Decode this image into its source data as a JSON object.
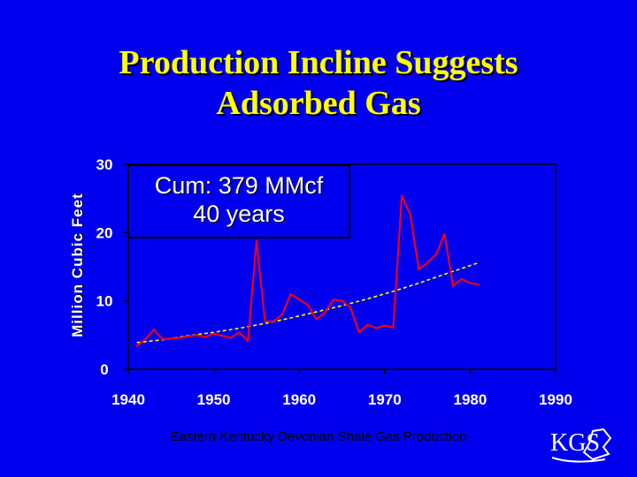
{
  "slide": {
    "title_line1": "Production Incline Suggests",
    "title_line2": "Adsorbed Gas",
    "caption": "Eastern Kentucky Devonian Shale Gas Production",
    "logo_text": "KGS",
    "annotation_line1": "Cum: 379 MMcf",
    "annotation_line2": "40 years"
  },
  "colors": {
    "background": "#0000ee",
    "title": "#ffff00",
    "series": "#ff0000",
    "trend": "#ffff00",
    "text": "#ffffff"
  },
  "chart_data": {
    "type": "line",
    "title": "",
    "xlabel": "",
    "ylabel": "Million Cubic Feet",
    "xlim": [
      1940,
      1990
    ],
    "ylim": [
      0,
      30
    ],
    "x_ticks": [
      "1940",
      "1950",
      "1960",
      "1970",
      "1980",
      "1990"
    ],
    "y_ticks": [
      "0",
      "10",
      "20",
      "30"
    ],
    "grid": false,
    "series": [
      {
        "type": "line",
        "points": [
          [
            1941,
            3.4
          ],
          [
            1942,
            4.4
          ],
          [
            1943,
            5.8
          ],
          [
            1944,
            4.4
          ],
          [
            1945,
            4.5
          ],
          [
            1946,
            4.6
          ],
          [
            1947,
            4.8
          ],
          [
            1948,
            5.0
          ],
          [
            1949,
            4.7
          ],
          [
            1950,
            5.2
          ],
          [
            1951,
            4.9
          ],
          [
            1952,
            4.6
          ],
          [
            1953,
            5.4
          ],
          [
            1954,
            4.1
          ],
          [
            1955,
            18.8
          ],
          [
            1956,
            7.0
          ],
          [
            1957,
            7.0
          ],
          [
            1958,
            8.0
          ],
          [
            1959,
            11.0
          ],
          [
            1960,
            10.2
          ],
          [
            1961,
            9.4
          ],
          [
            1962,
            7.3
          ],
          [
            1963,
            8.3
          ],
          [
            1964,
            10.2
          ],
          [
            1965,
            10.0
          ],
          [
            1966,
            9.0
          ],
          [
            1967,
            5.4
          ],
          [
            1968,
            6.5
          ],
          [
            1969,
            6.0
          ],
          [
            1970,
            6.4
          ],
          [
            1971,
            6.1
          ],
          [
            1972,
            25.4
          ],
          [
            1973,
            22.6
          ],
          [
            1974,
            14.6
          ],
          [
            1975,
            15.6
          ],
          [
            1976,
            16.8
          ],
          [
            1977,
            19.8
          ],
          [
            1978,
            12.2
          ],
          [
            1979,
            13.2
          ],
          [
            1980,
            12.6
          ],
          [
            1981,
            12.4
          ]
        ]
      },
      {
        "type": "trend",
        "points": [
          [
            1941,
            3.9
          ],
          [
            1944,
            4.3
          ],
          [
            1947,
            4.9
          ],
          [
            1950,
            5.4
          ],
          [
            1953,
            6.0
          ],
          [
            1956,
            6.7
          ],
          [
            1959,
            7.5
          ],
          [
            1962,
            8.4
          ],
          [
            1965,
            9.3
          ],
          [
            1968,
            10.3
          ],
          [
            1971,
            11.4
          ],
          [
            1974,
            12.6
          ],
          [
            1977,
            13.9
          ],
          [
            1981,
            15.6
          ]
        ]
      }
    ]
  }
}
